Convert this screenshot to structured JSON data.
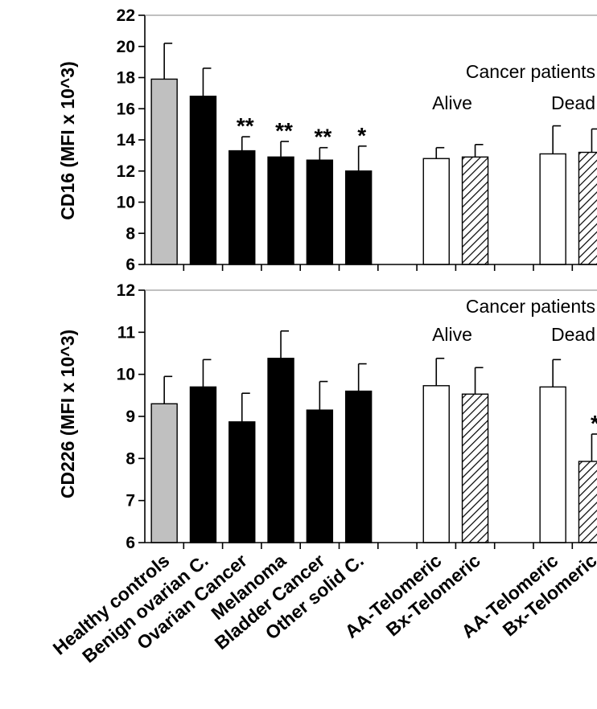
{
  "chart_data": [
    {
      "type": "bar",
      "ylabel": "CD16 (MFI x 10^3)",
      "ylim": [
        6,
        22
      ],
      "yticks": [
        6,
        8,
        10,
        12,
        14,
        16,
        18,
        20,
        22
      ],
      "grid": false,
      "categories": [
        "Healthy controls",
        "Benign ovarian C.",
        "Ovarian Cancer",
        "Melanoma",
        "Bladder Cancer",
        "Other solid C.",
        "AA-Telomeric",
        "Bx-Telomeric",
        "AA-Telomeric",
        "Bx-Telomeric"
      ],
      "values": [
        17.9,
        16.8,
        13.3,
        12.9,
        12.7,
        12.0,
        12.8,
        12.9,
        13.1,
        13.2
      ],
      "error_upper": [
        20.2,
        18.6,
        14.2,
        13.9,
        13.5,
        13.6,
        13.5,
        13.7,
        14.9,
        14.7
      ],
      "significance": [
        "",
        "",
        "**",
        "**",
        "**",
        "*",
        "",
        "",
        "",
        ""
      ],
      "bar_colors": [
        "#c0c0c0",
        "#000000",
        "#000000",
        "#000000",
        "#000000",
        "#000000",
        "#ffffff",
        "hatched",
        "#ffffff",
        "hatched"
      ],
      "annotations": [
        "Cancer patients",
        "Alive",
        "Dead"
      ]
    },
    {
      "type": "bar",
      "ylabel": "CD226 (MFI x 10^3)",
      "ylim": [
        6,
        12
      ],
      "yticks": [
        6,
        7,
        8,
        9,
        10,
        11,
        12
      ],
      "grid": false,
      "categories": [
        "Healthy controls",
        "Benign ovarian C.",
        "Ovarian Cancer",
        "Melanoma",
        "Bladder Cancer",
        "Other solid C.",
        "AA-Telomeric",
        "Bx-Telomeric",
        "AA-Telomeric",
        "Bx-Telomeric"
      ],
      "values": [
        9.3,
        9.7,
        8.87,
        10.38,
        9.15,
        9.6,
        9.73,
        9.53,
        9.7,
        7.93
      ],
      "error_upper": [
        9.95,
        10.35,
        9.55,
        11.03,
        9.83,
        10.25,
        10.38,
        10.16,
        10.35,
        8.58
      ],
      "significance": [
        "",
        "",
        "",
        "",
        "",
        "",
        "",
        "",
        "",
        "*"
      ],
      "bar_colors": [
        "#c0c0c0",
        "#000000",
        "#000000",
        "#000000",
        "#000000",
        "#000000",
        "#ffffff",
        "hatched",
        "#ffffff",
        "hatched"
      ],
      "annotations": [
        "Cancer patients",
        "Alive",
        "Dead"
      ]
    }
  ]
}
